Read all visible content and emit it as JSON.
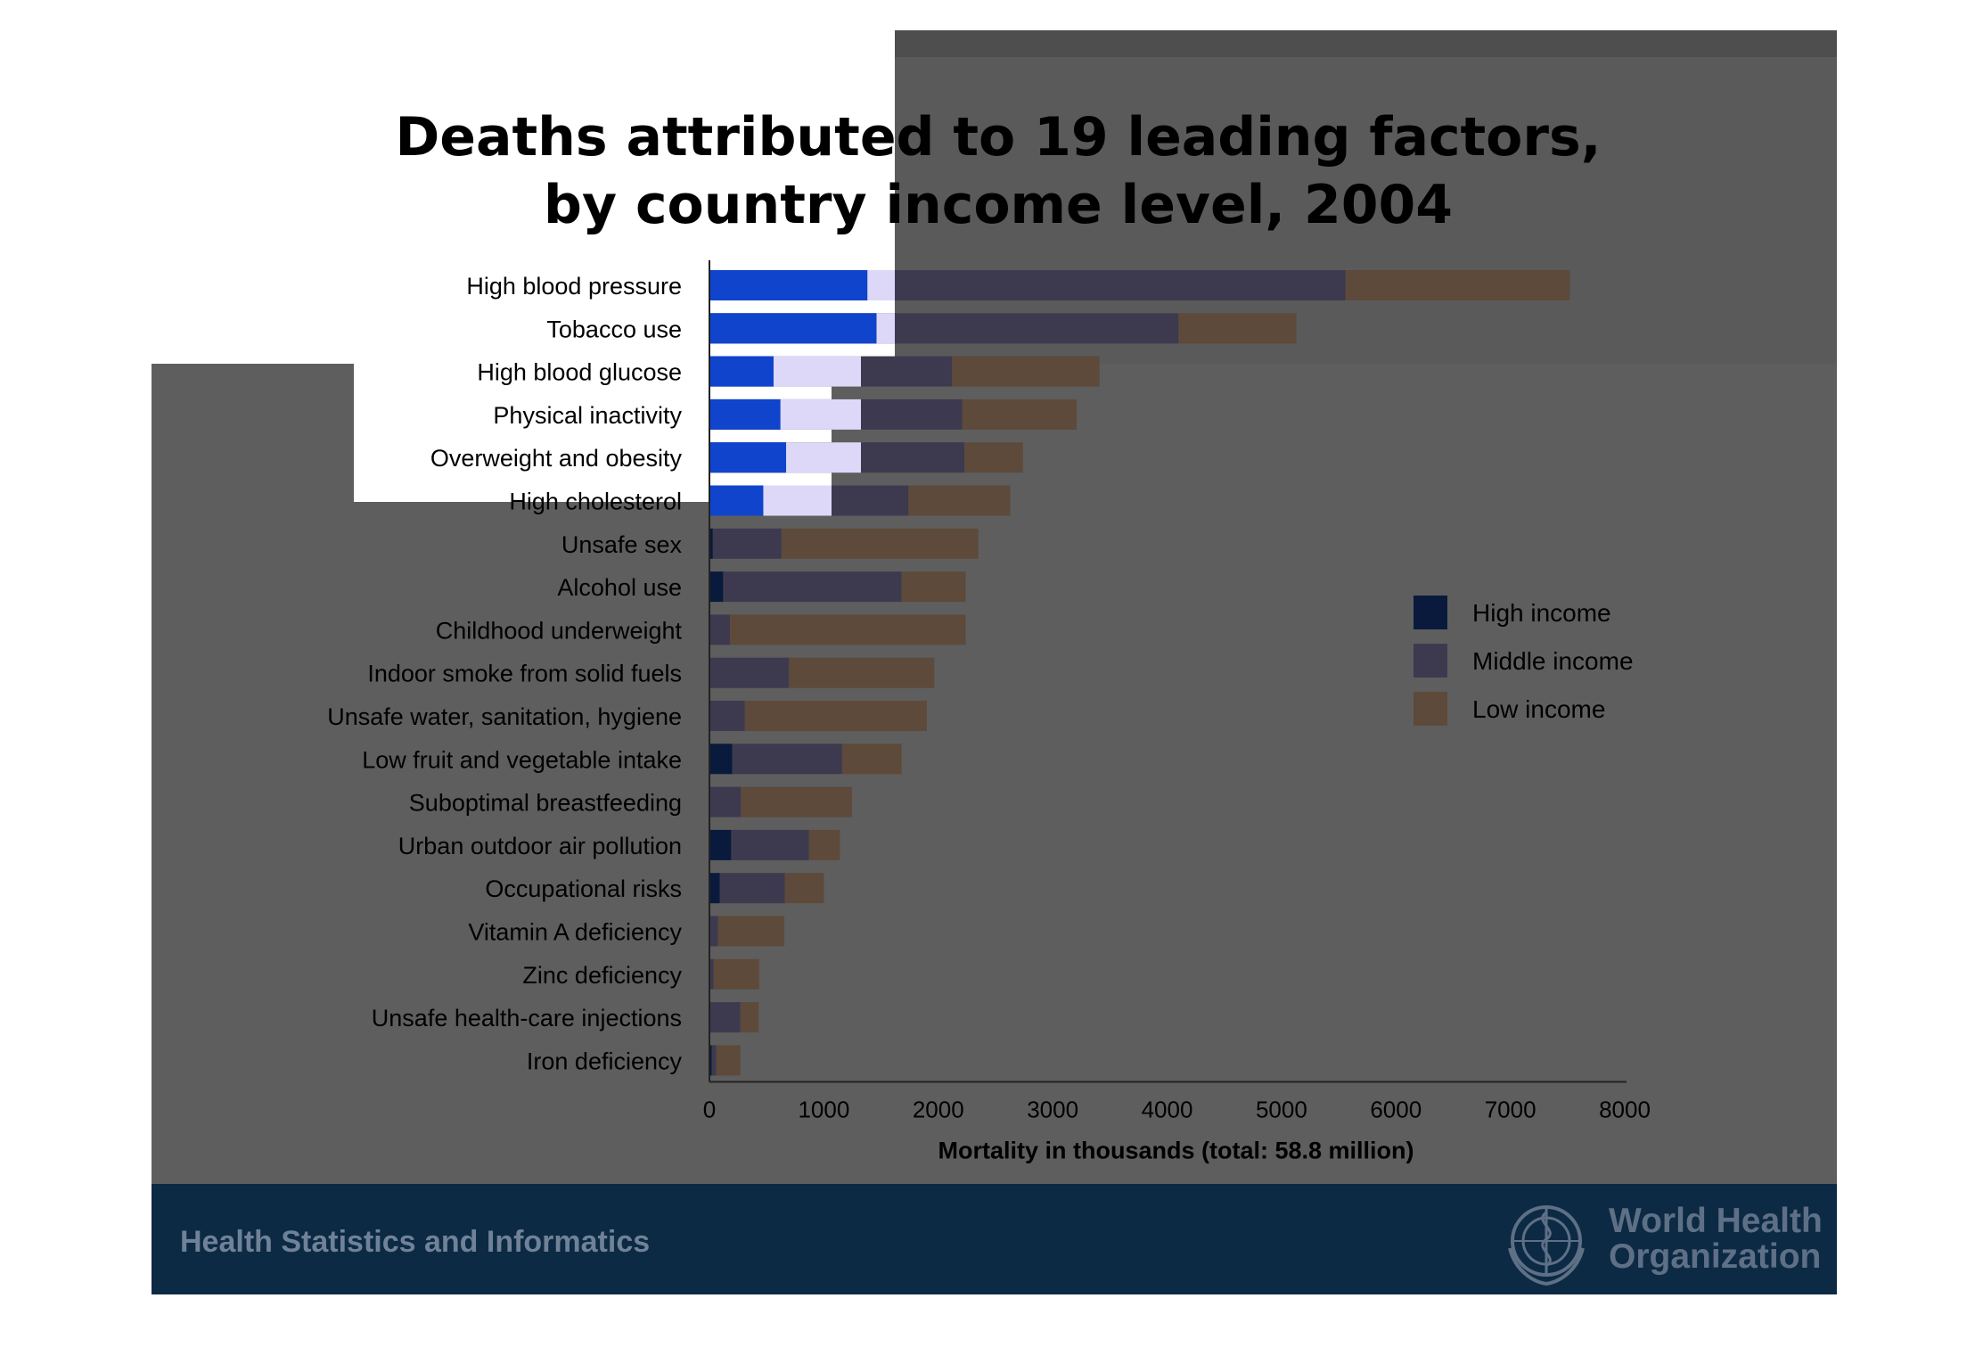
{
  "chart_data": {
    "type": "bar",
    "orientation": "horizontal",
    "stacked": true,
    "title": "Deaths attributed to 19 leading factors,\nby country income level, 2004",
    "title_lines": [
      "Deaths attributed to 19 leading factors,",
      "by country income level, 2004"
    ],
    "xlabel": "Mortality in thousands (total: 58.8 million)",
    "ylabel": "",
    "xlim": [
      0,
      8000
    ],
    "xticks": [
      0,
      1000,
      2000,
      3000,
      4000,
      5000,
      6000,
      7000,
      8000
    ],
    "grid": false,
    "legend_position": "right",
    "categories": [
      "High blood pressure",
      "Tobacco use",
      "High blood glucose",
      "Physical inactivity",
      "Overweight and obesity",
      "High cholesterol",
      "Unsafe sex",
      "Alcohol use",
      "Childhood underweight",
      "Indoor smoke from solid fuels",
      "Unsafe water, sanitation, hygiene",
      "Low fruit and vegetable intake",
      "Suboptimal breastfeeding",
      "Urban outdoor air pollution",
      "Occupational risks",
      "Vitamin A deficiency",
      "Zinc deficiency",
      "Unsafe health-care injections",
      "Iron deficiency"
    ],
    "series": [
      {
        "name": "High income",
        "color": "#0a1a3c",
        "values": [
          1380,
          1460,
          560,
          620,
          670,
          470,
          30,
          120,
          10,
          5,
          10,
          200,
          5,
          190,
          90,
          5,
          5,
          10,
          20
        ]
      },
      {
        "name": "Middle income",
        "color": "#3d3a50",
        "values": [
          4180,
          2640,
          1560,
          1590,
          1560,
          1270,
          600,
          1560,
          170,
          690,
          300,
          960,
          270,
          680,
          570,
          70,
          30,
          260,
          40
        ]
      },
      {
        "name": "Low income",
        "color": "#5d4a3a",
        "values": [
          1960,
          1030,
          1290,
          1000,
          510,
          890,
          1720,
          560,
          2060,
          1270,
          1590,
          520,
          970,
          270,
          340,
          580,
          400,
          160,
          210
        ]
      }
    ]
  },
  "footer": {
    "left_text": "Health Statistics and Informatics",
    "org_line1": "World Health",
    "org_line2": "Organization"
  },
  "colors": {
    "slide_background": "#5e5e5e",
    "footer_background": "#0d2a44",
    "highlight_blue": "#1144cc",
    "highlight_lavender": "#ddd8f8"
  }
}
